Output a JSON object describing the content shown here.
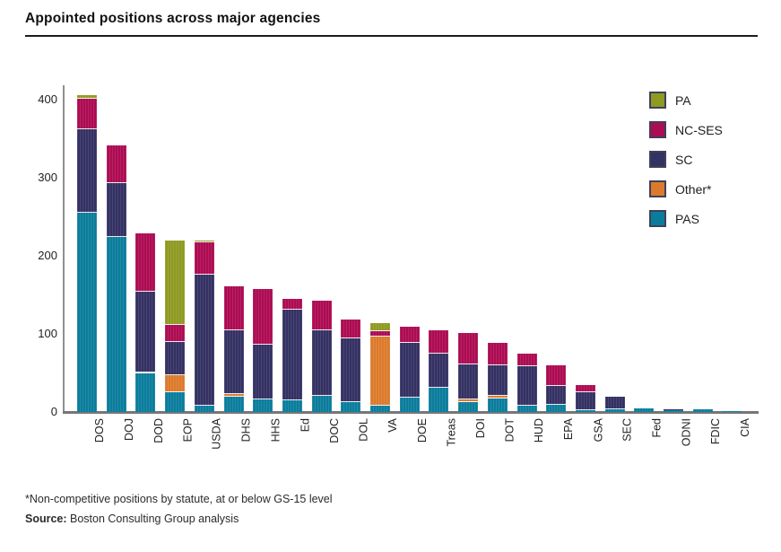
{
  "title": "Appointed positions across major agencies",
  "footnote": "*Non-competitive positions by statute, at or below GS-15 level",
  "source": {
    "label": "Source:",
    "text": " Boston Consulting Group analysis"
  },
  "colors": {
    "PA": "#8f9a21",
    "NC-SES": "#ad0b52",
    "SC": "#343163",
    "Other*": "#dc7a2c",
    "PAS": "#0b7d9c",
    "axis": "#8f8f8f",
    "baseline": "#767676"
  },
  "legend": [
    {
      "label": "PA",
      "color": "#8f9a21"
    },
    {
      "label": "NC-SES",
      "color": "#ad0b52"
    },
    {
      "label": "SC",
      "color": "#343163"
    },
    {
      "label": "Other*",
      "color": "#dc7a2c"
    },
    {
      "label": "PAS",
      "color": "#0b7d9c"
    }
  ],
  "chart_data": {
    "type": "bar",
    "stacked": true,
    "title": "Appointed positions across major agencies",
    "xlabel": "",
    "ylabel": "",
    "ylim": [
      0,
      400
    ],
    "yticks": [
      0,
      100,
      200,
      300,
      400
    ],
    "grid": false,
    "legend_position": "top-right",
    "categories": [
      "DOS",
      "DOJ",
      "DOD",
      "EOP",
      "USDA",
      "DHS",
      "HHS",
      "Ed",
      "DOC",
      "DOL",
      "VA",
      "DOE",
      "Treas",
      "DOI",
      "DOT",
      "HUD",
      "EPA",
      "GSA",
      "SEC",
      "Fed",
      "ODNI",
      "FDIC",
      "CIA"
    ],
    "series": [
      {
        "name": "PAS",
        "color": "#0b7d9c",
        "values": [
          255,
          224,
          50,
          25,
          8,
          19,
          16,
          15,
          21,
          13,
          8,
          18,
          31,
          13,
          17,
          8,
          9,
          2,
          3,
          5,
          3,
          3,
          1
        ]
      },
      {
        "name": "Other*",
        "color": "#dc7a2c",
        "values": [
          0,
          0,
          0,
          22,
          0,
          4,
          0,
          0,
          0,
          0,
          88,
          0,
          0,
          3,
          4,
          0,
          0,
          0,
          0,
          0,
          0,
          0,
          0
        ]
      },
      {
        "name": "SC",
        "color": "#343163",
        "values": [
          107,
          69,
          104,
          43,
          168,
          82,
          70,
          116,
          84,
          81,
          0,
          70,
          44,
          45,
          39,
          51,
          24,
          23,
          17,
          0,
          1,
          0,
          0
        ]
      },
      {
        "name": "NC-SES",
        "color": "#ad0b52",
        "values": [
          39,
          48,
          75,
          22,
          41,
          56,
          72,
          14,
          37,
          24,
          8,
          21,
          30,
          40,
          28,
          16,
          27,
          9,
          0,
          0,
          0,
          0,
          0
        ]
      },
      {
        "name": "PA",
        "color": "#8f9a21",
        "values": [
          5,
          0,
          0,
          108,
          2,
          0,
          0,
          0,
          0,
          0,
          10,
          0,
          0,
          0,
          0,
          0,
          0,
          0,
          0,
          0,
          0,
          0,
          0
        ]
      }
    ],
    "totals": [
      406,
      341,
      229,
      220,
      219,
      161,
      158,
      145,
      142,
      118,
      114,
      109,
      105,
      101,
      88,
      75,
      60,
      34,
      20,
      5,
      4,
      3,
      1
    ]
  }
}
